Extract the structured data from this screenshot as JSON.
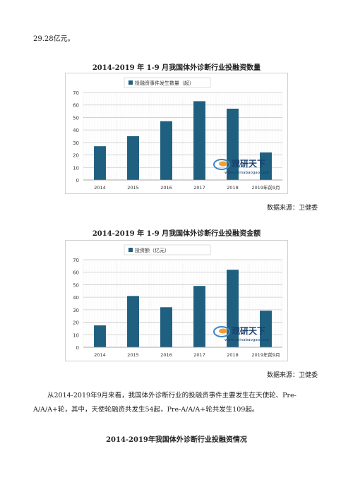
{
  "page": {
    "lead_text": "29.28亿元。",
    "paragraph": "从2014-2019年9月来看，我国体外诊断行业的投融资事件主要发生在天使轮、Pre-A/A/A+轮，其中，天使轮融资共发生54起，Pre-A/A/A+轮共发生109起。",
    "section_title": "2014-2019年我国体外诊断行业投融资情况",
    "watermark_brand": "观研天下",
    "watermark_url": "www.chinabaogao.com"
  },
  "chart_data": [
    {
      "type": "bar",
      "title": "2014-2019 年 1-9 月我国体外诊断行业投融资数量",
      "categories": [
        "2014",
        "2015",
        "2016",
        "2017",
        "2018",
        "2019年前9月"
      ],
      "series": [
        {
          "name": "投融资事件发生数量（起）",
          "values": [
            27,
            35,
            47,
            63,
            57,
            22
          ]
        }
      ],
      "ylim": [
        0,
        70
      ],
      "yticks": [
        0,
        10,
        20,
        30,
        40,
        50,
        60,
        70
      ],
      "grid": true,
      "legend": "top-left",
      "color": "#1f5f7f",
      "source": "数据来源：卫健委"
    },
    {
      "type": "bar",
      "title": "2014-2019 年 1-9 月我国体外诊断行业投融资金额",
      "categories": [
        "2014",
        "2015",
        "2016",
        "2017",
        "2018",
        "2019年前9月"
      ],
      "series": [
        {
          "name": "投资额（亿元）",
          "values": [
            17.5,
            41,
            32,
            49,
            62,
            29.28
          ]
        }
      ],
      "ylim": [
        0,
        70
      ],
      "yticks": [
        0,
        10,
        20,
        30,
        40,
        50,
        60,
        70
      ],
      "grid": true,
      "legend": "top-left",
      "color": "#1f5f7f",
      "source": "数据来源：卫健委"
    }
  ]
}
